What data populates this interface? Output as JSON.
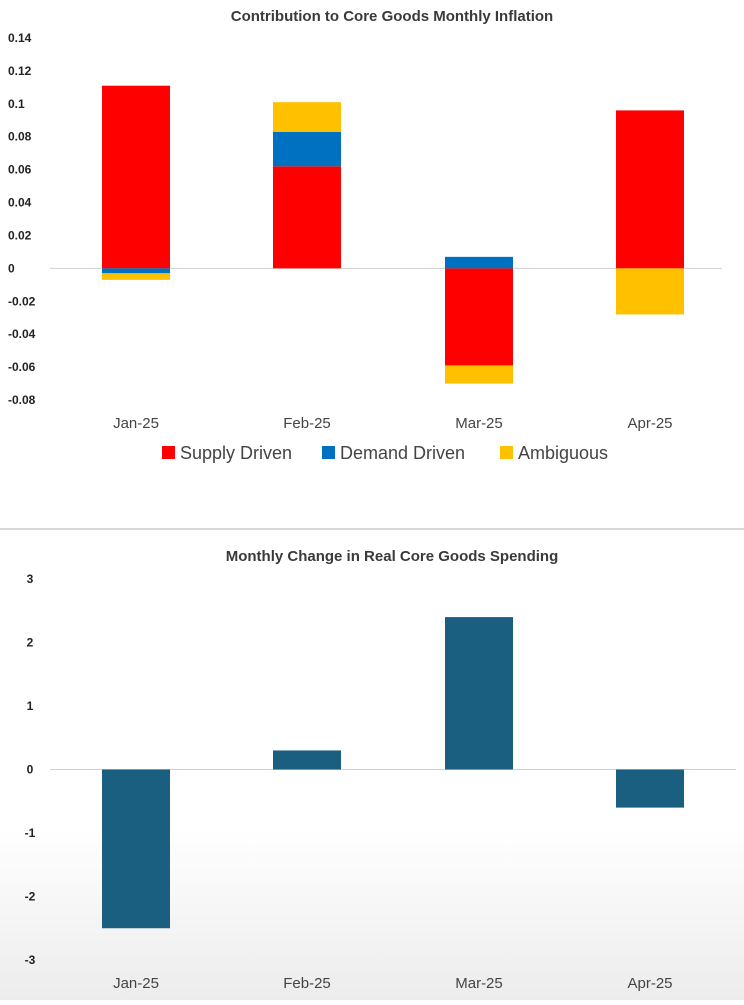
{
  "chart_data": [
    {
      "type": "bar",
      "stacked": true,
      "title": "Contribution to Core Goods Monthly Inflation",
      "categories": [
        "Jan-25",
        "Feb-25",
        "Mar-25",
        "Apr-25"
      ],
      "series": [
        {
          "name": "Supply Driven",
          "color": "#ff0000",
          "values": [
            0.111,
            0.062,
            -0.059,
            0.096
          ]
        },
        {
          "name": "Demand Driven",
          "color": "#0070c0",
          "values": [
            -0.003,
            0.021,
            0.007,
            0.0
          ]
        },
        {
          "name": "Ambiguous",
          "color": "#ffc000",
          "values": [
            -0.004,
            0.018,
            -0.011,
            -0.028
          ]
        }
      ],
      "ylim": [
        -0.08,
        0.14
      ],
      "yticks": [
        0.14,
        0.12,
        0.1,
        0.08,
        0.06,
        0.04,
        0.02,
        0,
        -0.02,
        -0.04,
        -0.06,
        -0.08
      ],
      "ytick_labels": [
        "0.14",
        "0.12",
        "0.1",
        "0.08",
        "0.06",
        "0.04",
        "0.02",
        "0",
        "-0.02",
        "-0.04",
        "-0.06",
        "-0.08"
      ],
      "legend": "bottom",
      "xlabel": "",
      "ylabel": ""
    },
    {
      "type": "bar",
      "title": "Monthly Change in Real Core Goods Spending",
      "categories": [
        "Jan-25",
        "Feb-25",
        "Mar-25",
        "Apr-25"
      ],
      "values": [
        -2.5,
        0.3,
        2.4,
        -0.6
      ],
      "color": "#1a5e80",
      "ylim": [
        -3,
        3
      ],
      "yticks": [
        3,
        2,
        1,
        0,
        -1,
        -2,
        -3
      ],
      "ytick_labels": [
        "3",
        "2",
        "1",
        "0",
        "-1",
        "-2",
        "-3"
      ],
      "xlabel": "",
      "ylabel": ""
    }
  ]
}
